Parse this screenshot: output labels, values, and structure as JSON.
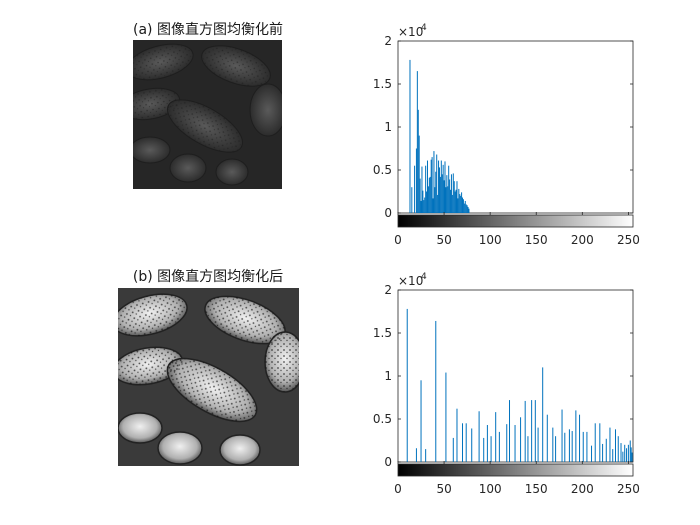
{
  "page": {
    "panels": [
      {
        "title": "(a) 图像直方图均衡化前"
      },
      {
        "title": "(b) 图像直方图均衡化后"
      }
    ]
  },
  "colors": {
    "bar": "#0072BD",
    "axis": "#262626",
    "background": "#ffffff"
  },
  "chart_data": [
    {
      "type": "bar",
      "title": "",
      "xlabel": "",
      "ylabel": "",
      "xlim": [
        0,
        255
      ],
      "ylim": [
        0,
        20000
      ],
      "xticks": [
        0,
        50,
        100,
        150,
        200,
        250
      ],
      "yticks": [
        0,
        5000,
        10000,
        15000,
        20000
      ],
      "ytick_labels": [
        "0",
        "0.5",
        "1",
        "1.5",
        "2"
      ],
      "y_multiplier": "×10",
      "y_exponent": "4",
      "colorbar": "grayscale 0-255",
      "x": [
        13,
        15,
        18,
        20,
        21,
        22,
        23,
        24,
        25,
        26,
        27,
        28,
        29,
        30,
        31,
        32,
        33,
        34,
        35,
        36,
        37,
        38,
        39,
        40,
        41,
        42,
        43,
        44,
        45,
        46,
        47,
        48,
        49,
        50,
        51,
        52,
        53,
        54,
        55,
        56,
        57,
        58,
        59,
        60,
        61,
        62,
        63,
        64,
        65,
        66,
        67,
        68,
        69,
        70,
        71,
        72,
        73,
        74,
        75,
        76,
        77
      ],
      "values": [
        17800,
        3000,
        5500,
        7500,
        16500,
        12000,
        9000,
        4000,
        1400,
        5400,
        2600,
        1500,
        1800,
        5500,
        2500,
        6100,
        3100,
        4100,
        4200,
        6200,
        6500,
        1700,
        7200,
        3000,
        4800,
        6800,
        2100,
        6100,
        5300,
        4200,
        6100,
        4500,
        5600,
        3800,
        6000,
        3000,
        4400,
        3100,
        5500,
        3900,
        2700,
        4500,
        2100,
        4600,
        3700,
        2500,
        2700,
        3700,
        1700,
        2800,
        2200,
        2000,
        2400,
        1800,
        1600,
        1100,
        1400,
        1000,
        900,
        700,
        500
      ]
    },
    {
      "type": "bar",
      "title": "",
      "xlabel": "",
      "ylabel": "",
      "xlim": [
        0,
        255
      ],
      "ylim": [
        0,
        20000
      ],
      "xticks": [
        0,
        50,
        100,
        150,
        200,
        250
      ],
      "yticks": [
        0,
        5000,
        10000,
        15000,
        20000
      ],
      "ytick_labels": [
        "0",
        "0.5",
        "1",
        "1.5",
        "2"
      ],
      "y_multiplier": "×10",
      "y_exponent": "4",
      "colorbar": "grayscale 0-255",
      "x": [
        10,
        20,
        25,
        30,
        41,
        52,
        60,
        64,
        70,
        74,
        80,
        88,
        93,
        97,
        101,
        106,
        110,
        118,
        121,
        127,
        133,
        138,
        141,
        145,
        149,
        152,
        157,
        162,
        168,
        171,
        178,
        181,
        186,
        189,
        193,
        197,
        201,
        205,
        210,
        214,
        219,
        222,
        226,
        230,
        233,
        236,
        239,
        242,
        244,
        246,
        248,
        250,
        252,
        253,
        254
      ],
      "values": [
        17800,
        1600,
        9500,
        1500,
        16400,
        10400,
        2800,
        6200,
        4500,
        4500,
        3900,
        5900,
        2800,
        4300,
        3000,
        5800,
        3500,
        4400,
        7200,
        4300,
        5200,
        7100,
        3000,
        7200,
        7200,
        4000,
        11000,
        5500,
        4000,
        3000,
        6100,
        3400,
        3800,
        3600,
        6000,
        5500,
        3500,
        3500,
        1900,
        4500,
        4500,
        2100,
        2700,
        4000,
        1500,
        3800,
        3000,
        2200,
        1200,
        2000,
        1600,
        2000,
        2500,
        1700,
        1100
      ]
    }
  ]
}
